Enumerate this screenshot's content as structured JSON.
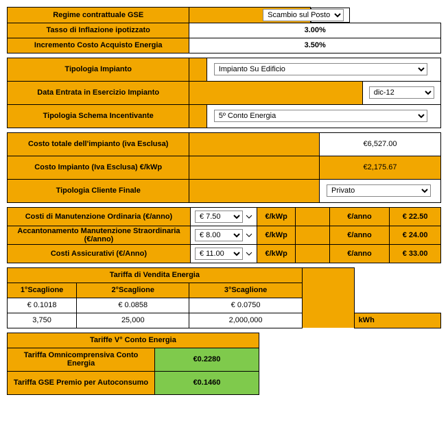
{
  "section1": {
    "regime_label": "Regime contrattuale GSE",
    "regime_value": "Scambio sul Posto",
    "inflazione_label": "Tasso di Inflazione ipotizzato",
    "inflazione_value": "3.00%",
    "incremento_label": "Incremento Costo Acquisto Energia",
    "incremento_value": "3.50%"
  },
  "section2": {
    "tipologia_impianto_label": "Tipologia Impianto",
    "tipologia_impianto_value": "Impianto Su Edificio",
    "data_entrata_label": "Data Entrata in Esercizio Impianto",
    "data_entrata_value": "dic-12",
    "schema_incentivante_label": "Tipologia Schema Incentivante",
    "schema_incentivante_value": "5º Conto Energia"
  },
  "section3": {
    "costo_totale_label": "Costo totale dell'impianto (iva Esclusa)",
    "costo_totale_value": "€6,527.00",
    "costo_kwp_label": "Costo Impianto (Iva Esclusa) €/kWp",
    "costo_kwp_value": "€2,175.67",
    "cliente_finale_label": "Tipologia Cliente Finale",
    "cliente_finale_value": "Privato"
  },
  "section4": {
    "unit_kwp": "€/kWp",
    "unit_anno": "€/anno",
    "rows": [
      {
        "label": "Costi di Manutenzione Ordinaria (€/anno)",
        "sel": "€ 7.50",
        "val": "€ 22.50"
      },
      {
        "label": "Accantonamento Manutenzione Straordinaria (€/anno)",
        "sel": "€ 8.00",
        "val": "€ 24.00"
      },
      {
        "label": "Costi Assicurativi (€/Anno)",
        "sel": "€ 11.00",
        "val": "€ 33.00"
      }
    ]
  },
  "section5": {
    "title": "Tariffa di Vendita Energia",
    "headers": [
      "1°Scaglione",
      "2°Scaglione",
      "3°Scaglione"
    ],
    "row1": [
      "€ 0.1018",
      "€ 0.0858",
      "€ 0.0750"
    ],
    "row2": [
      "3,750",
      "25,000",
      "2,000,000"
    ],
    "unit": "kWh"
  },
  "section6": {
    "title": "Tariffe V° Conto Energia",
    "rows": [
      {
        "label": "Tariffa Omnicomprensiva Conto Energia",
        "val": "€0.2280"
      },
      {
        "label": "Tariffa GSE Premio per Autoconsumo",
        "val": "€0.1460"
      }
    ]
  }
}
